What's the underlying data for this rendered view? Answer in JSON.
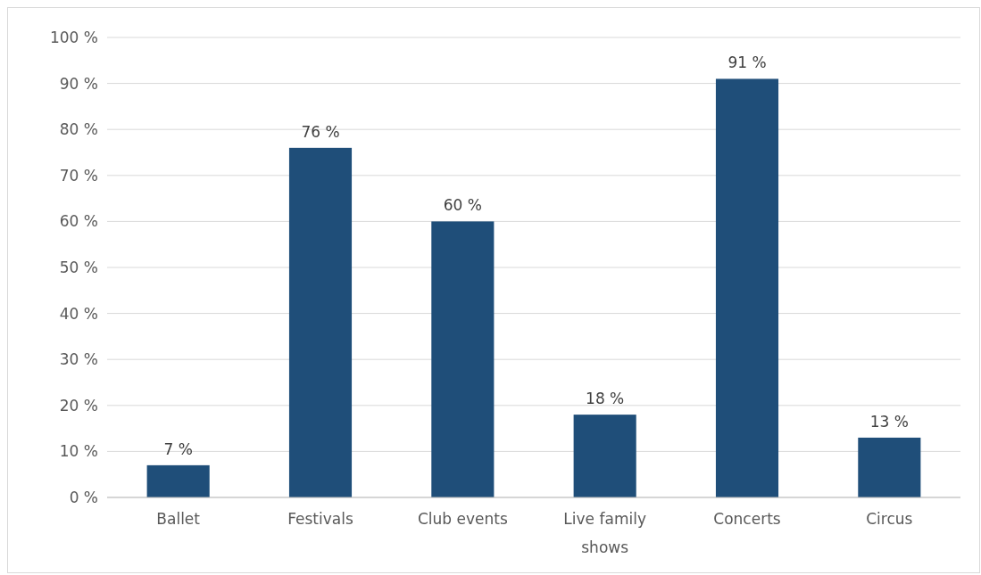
{
  "chart_data": {
    "type": "bar",
    "categories": [
      "Ballet",
      "Festivals",
      "Club events",
      "Live family shows",
      "Concerts",
      "Circus"
    ],
    "values": [
      7,
      76,
      60,
      18,
      91,
      13
    ],
    "value_labels": [
      "7 %",
      "76 %",
      "60 %",
      "18 %",
      "91 %",
      "13 %"
    ],
    "color": "#1f4e79",
    "ylim": [
      0,
      100
    ],
    "yticks": [
      {
        "value": 0,
        "label": "0 %"
      },
      {
        "value": 10,
        "label": "10 %"
      },
      {
        "value": 20,
        "label": "20 %"
      },
      {
        "value": 30,
        "label": "30 %"
      },
      {
        "value": 40,
        "label": "40 %"
      },
      {
        "value": 50,
        "label": "50 %"
      },
      {
        "value": 60,
        "label": "60 %"
      },
      {
        "value": 70,
        "label": "70 %"
      },
      {
        "value": 80,
        "label": "80 %"
      },
      {
        "value": 90,
        "label": "90 %"
      },
      {
        "value": 100,
        "label": "100 %"
      }
    ],
    "grid": "y"
  }
}
